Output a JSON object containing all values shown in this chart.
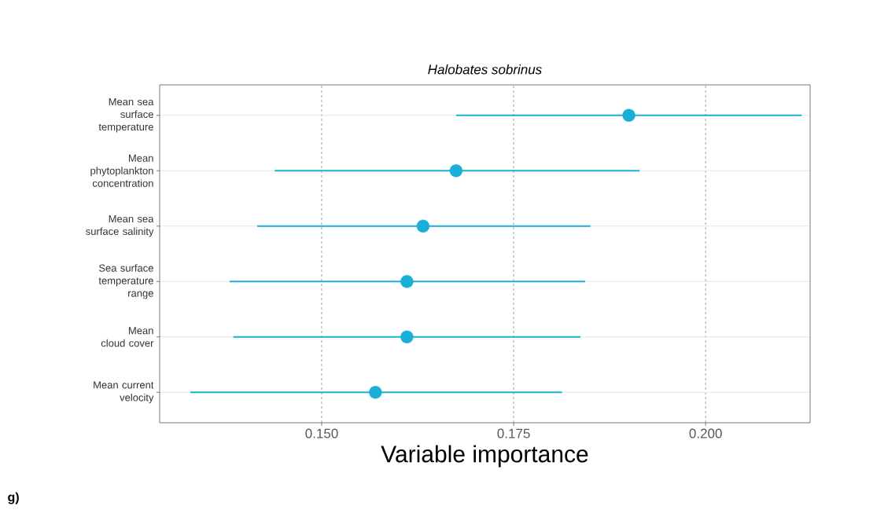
{
  "chart_data": {
    "type": "scatter",
    "orientation": "horizontal",
    "title": "Halobates sobrinus",
    "xlabel": "Variable importance",
    "categories": [
      "Mean sea surface temperature",
      "Mean phytoplankton concentration",
      "Mean sea surface salinity",
      "Sea surface temperature range",
      "Mean cloud cover",
      "Mean current velocity"
    ],
    "values": [
      0.19,
      0.1675,
      0.1632,
      0.1611,
      0.1611,
      0.157
    ],
    "errors": [
      [
        0.1675,
        0.2125
      ],
      [
        0.1439,
        0.1914
      ],
      [
        0.1416,
        0.185
      ],
      [
        0.138,
        0.1843
      ],
      [
        0.1385,
        0.1837
      ],
      [
        0.1329,
        0.1813
      ]
    ],
    "color": "#1aafd9",
    "grid": true,
    "xlim": [
      0.1289,
      0.2136
    ],
    "xticks": [
      {
        "value": 0.15,
        "label": "0.150"
      },
      {
        "value": 0.175,
        "label": "0.175"
      },
      {
        "value": 0.2,
        "label": "0.200"
      }
    ],
    "annotations": [
      "g)"
    ]
  }
}
